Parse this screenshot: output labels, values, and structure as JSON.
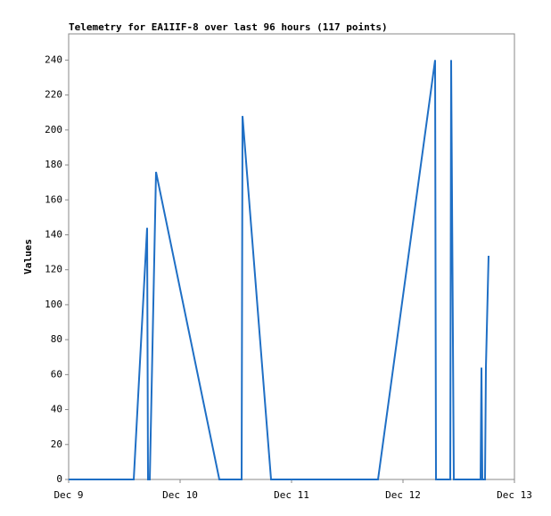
{
  "chart_data": {
    "type": "line",
    "title": "Telemetry for EA1IIF-8 over last 96 hours (117 points)",
    "y_label": "Values",
    "x": [
      0,
      0.584,
      0.704,
      0.712,
      0.728,
      0.784,
      1.352,
      1.552,
      1.56,
      1.816,
      2.776,
      3.288,
      3.296,
      3.424,
      3.432,
      3.456,
      3.696,
      3.704,
      3.712,
      3.736,
      3.744,
      3.768
    ],
    "series": [
      {
        "color": "#1f6fc5",
        "values": [
          0,
          0,
          144,
          0,
          0,
          176,
          0,
          0,
          208,
          0,
          0,
          240,
          0,
          0,
          240,
          0,
          0,
          64,
          0,
          0,
          64,
          128
        ]
      }
    ],
    "xlim": [
      0,
      4
    ],
    "xticks": [
      {
        "value": 0,
        "label": "Dec 9"
      },
      {
        "value": 1,
        "label": "Dec 10"
      },
      {
        "value": 2,
        "label": "Dec 11"
      },
      {
        "value": 3,
        "label": "Dec 12"
      },
      {
        "value": 4,
        "label": "Dec 13"
      }
    ],
    "ylim": [
      0,
      255
    ],
    "yticks": [
      0,
      20,
      40,
      60,
      80,
      100,
      120,
      140,
      160,
      180,
      200,
      220,
      240
    ]
  }
}
